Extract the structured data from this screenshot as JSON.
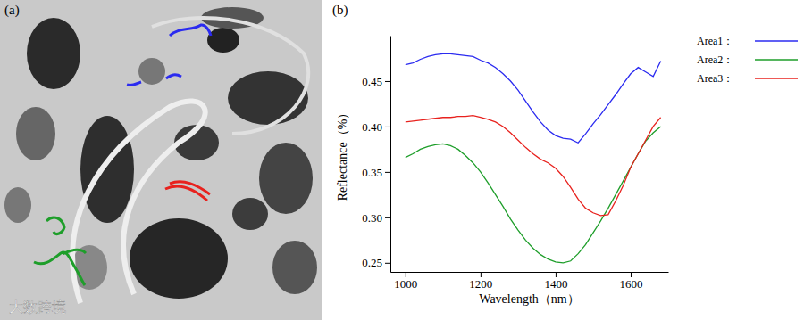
{
  "chart_data": {
    "type": "line",
    "title": "(b)",
    "annotations": [
      "(a)",
      "大数跨境"
    ],
    "x_label": "Wavelength（nm）",
    "y_label": "Reflectance（%）",
    "x": [
      1000,
      1020,
      1040,
      1060,
      1080,
      1100,
      1120,
      1140,
      1160,
      1180,
      1200,
      1220,
      1240,
      1260,
      1280,
      1300,
      1320,
      1340,
      1360,
      1380,
      1400,
      1420,
      1440,
      1460,
      1480,
      1500,
      1520,
      1540,
      1560,
      1580,
      1600,
      1620,
      1640,
      1660,
      1680
    ],
    "series": [
      {
        "name": "Area1：",
        "color": "#2b2bf0",
        "values": [
          0.468,
          0.47,
          0.474,
          0.477,
          0.479,
          0.48,
          0.48,
          0.479,
          0.478,
          0.477,
          0.473,
          0.47,
          0.465,
          0.458,
          0.45,
          0.44,
          0.428,
          0.416,
          0.405,
          0.396,
          0.39,
          0.387,
          0.386,
          0.382,
          0.392,
          0.403,
          0.413,
          0.424,
          0.435,
          0.447,
          0.458,
          0.465,
          0.46,
          0.455,
          0.472
        ]
      },
      {
        "name": "Area2：",
        "color": "#1e9e2a",
        "values": [
          0.366,
          0.37,
          0.375,
          0.378,
          0.38,
          0.381,
          0.379,
          0.375,
          0.368,
          0.36,
          0.35,
          0.338,
          0.325,
          0.312,
          0.298,
          0.286,
          0.275,
          0.266,
          0.259,
          0.254,
          0.251,
          0.25,
          0.252,
          0.26,
          0.27,
          0.283,
          0.296,
          0.31,
          0.325,
          0.34,
          0.355,
          0.37,
          0.384,
          0.393,
          0.4
        ]
      },
      {
        "name": "Area3：",
        "color": "#e8221e",
        "values": [
          0.405,
          0.406,
          0.407,
          0.408,
          0.409,
          0.41,
          0.41,
          0.411,
          0.411,
          0.412,
          0.41,
          0.408,
          0.405,
          0.4,
          0.393,
          0.385,
          0.377,
          0.37,
          0.364,
          0.36,
          0.354,
          0.345,
          0.333,
          0.32,
          0.31,
          0.305,
          0.302,
          0.303,
          0.318,
          0.335,
          0.355,
          0.37,
          0.385,
          0.4,
          0.41
        ]
      }
    ],
    "xlim": [
      960,
      1700
    ],
    "xticks": [
      1000,
      1200,
      1400,
      1600
    ],
    "ylim": [
      0.24,
      0.5
    ],
    "yticks": [
      0.25,
      {
        "value": 0.3,
        "label": "0.30"
      },
      0.35,
      {
        "value": 0.4,
        "label": "0.40"
      },
      0.45
    ],
    "grid": false,
    "legend": "right"
  }
}
